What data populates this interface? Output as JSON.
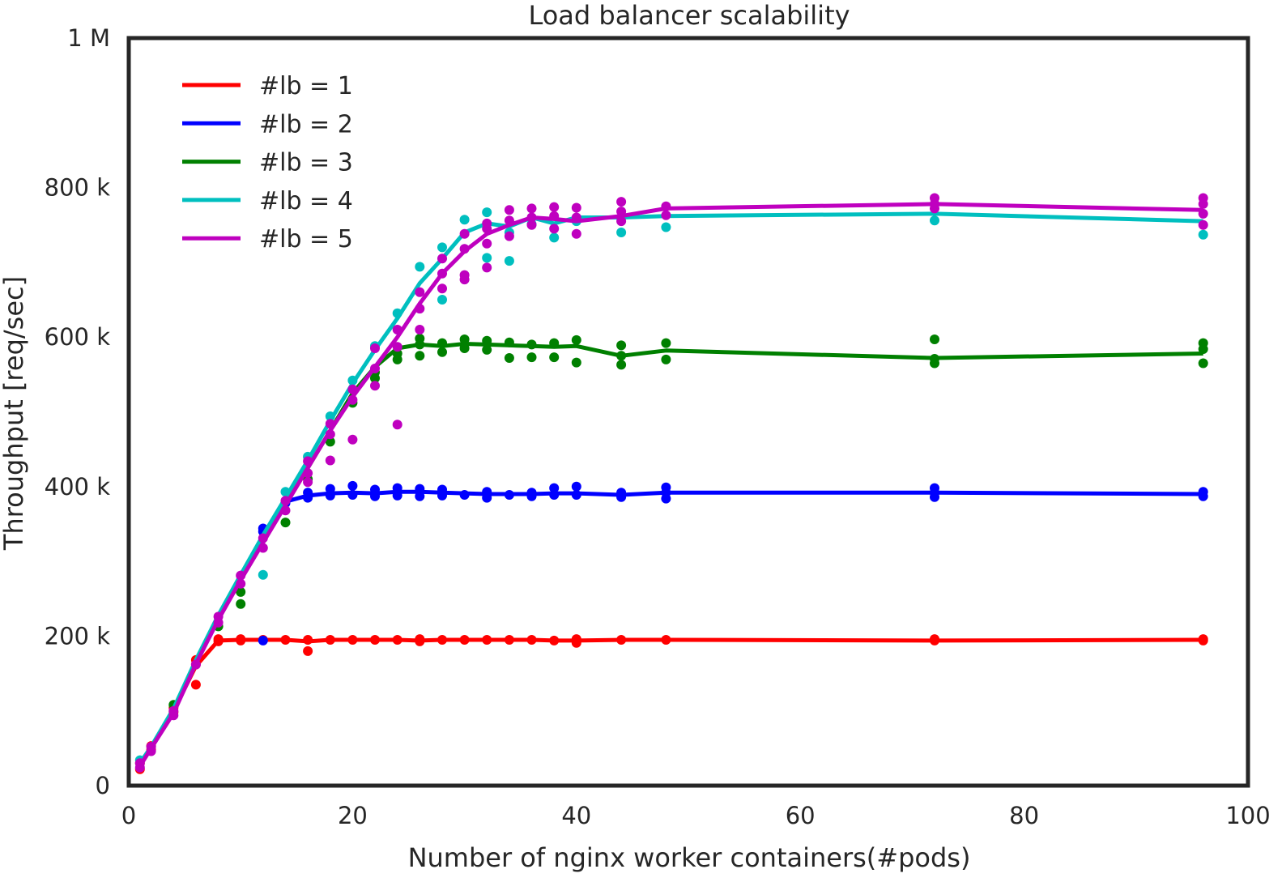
{
  "chart_data": {
    "type": "line",
    "title": "Load balancer scalability",
    "xlabel": "Number of nginx worker containers(#pods)",
    "ylabel": "Throughput [req/sec]",
    "xlim": [
      0,
      100
    ],
    "ylim": [
      0,
      1000000
    ],
    "xticks": [
      0,
      20,
      40,
      60,
      80,
      100
    ],
    "xtick_labels": [
      "0",
      "20",
      "40",
      "60",
      "80",
      "100"
    ],
    "yticks": [
      0,
      200000,
      400000,
      600000,
      800000,
      1000000
    ],
    "ytick_labels": [
      "0",
      "200 k",
      "400 k",
      "600 k",
      "800 k",
      "1 M"
    ],
    "grid": false,
    "legend_position": "top-left",
    "x": [
      1,
      2,
      4,
      6,
      8,
      10,
      12,
      14,
      16,
      18,
      20,
      22,
      24,
      26,
      28,
      30,
      32,
      34,
      36,
      38,
      40,
      44,
      48,
      72,
      96
    ],
    "series": [
      {
        "name": "#lb = 1",
        "color": "#ff0000",
        "values": [
          28000,
          50000,
          100000,
          160000,
          194000,
          195000,
          195000,
          195000,
          193000,
          195000,
          195000,
          195000,
          195000,
          194000,
          195000,
          195000,
          195000,
          195000,
          195000,
          194000,
          194000,
          195000,
          195000,
          194000,
          195000
        ],
        "points": [
          [
            1,
            22000
          ],
          [
            1,
            30000
          ],
          [
            2,
            48000
          ],
          [
            2,
            53000
          ],
          [
            4,
            98000
          ],
          [
            4,
            104000
          ],
          [
            6,
            135000
          ],
          [
            6,
            162000
          ],
          [
            6,
            168000
          ],
          [
            8,
            193000
          ],
          [
            8,
            196000
          ],
          [
            10,
            194000
          ],
          [
            10,
            196000
          ],
          [
            12,
            195000
          ],
          [
            14,
            195000
          ],
          [
            16,
            180000
          ],
          [
            16,
            195000
          ],
          [
            18,
            195000
          ],
          [
            20,
            195000
          ],
          [
            22,
            195000
          ],
          [
            24,
            195000
          ],
          [
            26,
            193000
          ],
          [
            26,
            196000
          ],
          [
            28,
            195000
          ],
          [
            30,
            195000
          ],
          [
            32,
            195000
          ],
          [
            34,
            195000
          ],
          [
            36,
            195000
          ],
          [
            38,
            194000
          ],
          [
            40,
            191000
          ],
          [
            40,
            196000
          ],
          [
            44,
            195000
          ],
          [
            48,
            195000
          ],
          [
            72,
            194000
          ],
          [
            72,
            196000
          ],
          [
            96,
            194000
          ],
          [
            96,
            196000
          ]
        ]
      },
      {
        "name": "#lb = 2",
        "color": "#0000ff",
        "values": [
          28000,
          50000,
          100000,
          165000,
          225000,
          275000,
          330000,
          380000,
          388000,
          391000,
          392000,
          391000,
          393000,
          393000,
          392000,
          391000,
          390000,
          390000,
          390000,
          391000,
          391000,
          389000,
          392000,
          392000,
          390000
        ],
        "points": [
          [
            12,
            194000
          ],
          [
            12,
            340000
          ],
          [
            12,
            344000
          ],
          [
            14,
            378000
          ],
          [
            16,
            385000
          ],
          [
            16,
            392000
          ],
          [
            18,
            388000
          ],
          [
            18,
            397000
          ],
          [
            20,
            389000
          ],
          [
            20,
            401000
          ],
          [
            22,
            387000
          ],
          [
            22,
            396000
          ],
          [
            24,
            388000
          ],
          [
            24,
            398000
          ],
          [
            26,
            387000
          ],
          [
            26,
            397000
          ],
          [
            28,
            388000
          ],
          [
            28,
            396000
          ],
          [
            30,
            389000
          ],
          [
            32,
            385000
          ],
          [
            32,
            393000
          ],
          [
            34,
            389000
          ],
          [
            36,
            387000
          ],
          [
            36,
            392000
          ],
          [
            38,
            389000
          ],
          [
            38,
            398000
          ],
          [
            40,
            389000
          ],
          [
            40,
            400000
          ],
          [
            44,
            386000
          ],
          [
            44,
            392000
          ],
          [
            48,
            384000
          ],
          [
            48,
            392000
          ],
          [
            48,
            399000
          ],
          [
            72,
            386000
          ],
          [
            72,
            392000
          ],
          [
            72,
            398000
          ],
          [
            96,
            387000
          ],
          [
            96,
            393000
          ]
        ]
      },
      {
        "name": "#lb = 3",
        "color": "#008000",
        "values": [
          28000,
          50000,
          100000,
          165000,
          225000,
          275000,
          330000,
          380000,
          425000,
          475000,
          525000,
          560000,
          585000,
          590000,
          588000,
          591000,
          590000,
          589000,
          588000,
          587000,
          588000,
          575000,
          582000,
          572000,
          578000
        ],
        "points": [
          [
            4,
            108000
          ],
          [
            8,
            213000
          ],
          [
            10,
            243000
          ],
          [
            10,
            259000
          ],
          [
            14,
            352000
          ],
          [
            16,
            410000
          ],
          [
            18,
            460000
          ],
          [
            20,
            512000
          ],
          [
            22,
            545000
          ],
          [
            22,
            553000
          ],
          [
            24,
            570000
          ],
          [
            24,
            578000
          ],
          [
            26,
            575000
          ],
          [
            26,
            590000
          ],
          [
            26,
            598000
          ],
          [
            28,
            580000
          ],
          [
            28,
            592000
          ],
          [
            30,
            585000
          ],
          [
            30,
            597000
          ],
          [
            32,
            583000
          ],
          [
            32,
            595000
          ],
          [
            34,
            572000
          ],
          [
            34,
            593000
          ],
          [
            36,
            573000
          ],
          [
            36,
            590000
          ],
          [
            38,
            573000
          ],
          [
            38,
            592000
          ],
          [
            40,
            566000
          ],
          [
            40,
            596000
          ],
          [
            44,
            563000
          ],
          [
            44,
            575000
          ],
          [
            44,
            589000
          ],
          [
            48,
            570000
          ],
          [
            48,
            592000
          ],
          [
            72,
            565000
          ],
          [
            72,
            571000
          ],
          [
            72,
            597000
          ],
          [
            96,
            565000
          ],
          [
            96,
            584000
          ],
          [
            96,
            592000
          ]
        ]
      },
      {
        "name": "#lb = 4",
        "color": "#00bfbf",
        "values": [
          30000,
          52000,
          103000,
          168000,
          228000,
          282000,
          335000,
          385000,
          435000,
          488000,
          538000,
          583000,
          625000,
          672000,
          705000,
          740000,
          752000,
          748000,
          760000,
          752000,
          760000,
          760000,
          762000,
          765000,
          755000
        ],
        "points": [
          [
            1,
            34000
          ],
          [
            12,
            282000
          ],
          [
            14,
            393000
          ],
          [
            16,
            440000
          ],
          [
            18,
            494000
          ],
          [
            20,
            542000
          ],
          [
            22,
            588000
          ],
          [
            24,
            632000
          ],
          [
            26,
            694000
          ],
          [
            28,
            650000
          ],
          [
            28,
            720000
          ],
          [
            30,
            757000
          ],
          [
            32,
            706000
          ],
          [
            32,
            767000
          ],
          [
            34,
            702000
          ],
          [
            34,
            740000
          ],
          [
            36,
            751000
          ],
          [
            38,
            733000
          ],
          [
            40,
            755000
          ],
          [
            44,
            740000
          ],
          [
            48,
            747000
          ],
          [
            72,
            756000
          ],
          [
            96,
            737000
          ]
        ]
      },
      {
        "name": "#lb = 5",
        "color": "#bf00bf",
        "values": [
          26000,
          50000,
          97000,
          163000,
          222000,
          275000,
          325000,
          375000,
          425000,
          475000,
          520000,
          560000,
          600000,
          645000,
          685000,
          715000,
          738000,
          750000,
          760000,
          758000,
          755000,
          762000,
          772000,
          778000,
          770000
        ],
        "points": [
          [
            1,
            24000
          ],
          [
            1,
            30000
          ],
          [
            2,
            46000
          ],
          [
            2,
            52000
          ],
          [
            4,
            94000
          ],
          [
            4,
            100000
          ],
          [
            6,
            162000
          ],
          [
            8,
            218000
          ],
          [
            8,
            226000
          ],
          [
            10,
            270000
          ],
          [
            10,
            281000
          ],
          [
            12,
            318000
          ],
          [
            12,
            331000
          ],
          [
            14,
            368000
          ],
          [
            14,
            381000
          ],
          [
            16,
            406000
          ],
          [
            16,
            418000
          ],
          [
            16,
            434000
          ],
          [
            18,
            435000
          ],
          [
            18,
            470000
          ],
          [
            18,
            484000
          ],
          [
            20,
            463000
          ],
          [
            20,
            516000
          ],
          [
            20,
            530000
          ],
          [
            22,
            535000
          ],
          [
            22,
            558000
          ],
          [
            22,
            585000
          ],
          [
            24,
            483000
          ],
          [
            24,
            587000
          ],
          [
            24,
            610000
          ],
          [
            26,
            610000
          ],
          [
            26,
            638000
          ],
          [
            26,
            660000
          ],
          [
            28,
            665000
          ],
          [
            28,
            685000
          ],
          [
            28,
            705000
          ],
          [
            30,
            677000
          ],
          [
            30,
            683000
          ],
          [
            30,
            718000
          ],
          [
            30,
            738000
          ],
          [
            32,
            693000
          ],
          [
            32,
            725000
          ],
          [
            32,
            745000
          ],
          [
            32,
            752000
          ],
          [
            34,
            735000
          ],
          [
            34,
            756000
          ],
          [
            34,
            770000
          ],
          [
            36,
            750000
          ],
          [
            36,
            760000
          ],
          [
            36,
            772000
          ],
          [
            38,
            745000
          ],
          [
            38,
            762000
          ],
          [
            38,
            774000
          ],
          [
            40,
            738000
          ],
          [
            40,
            760000
          ],
          [
            40,
            773000
          ],
          [
            44,
            755000
          ],
          [
            44,
            768000
          ],
          [
            44,
            781000
          ],
          [
            48,
            763000
          ],
          [
            48,
            775000
          ],
          [
            72,
            772000
          ],
          [
            72,
            778000
          ],
          [
            72,
            786000
          ],
          [
            96,
            750000
          ],
          [
            96,
            765000
          ],
          [
            96,
            778000
          ],
          [
            96,
            786000
          ]
        ]
      }
    ]
  }
}
